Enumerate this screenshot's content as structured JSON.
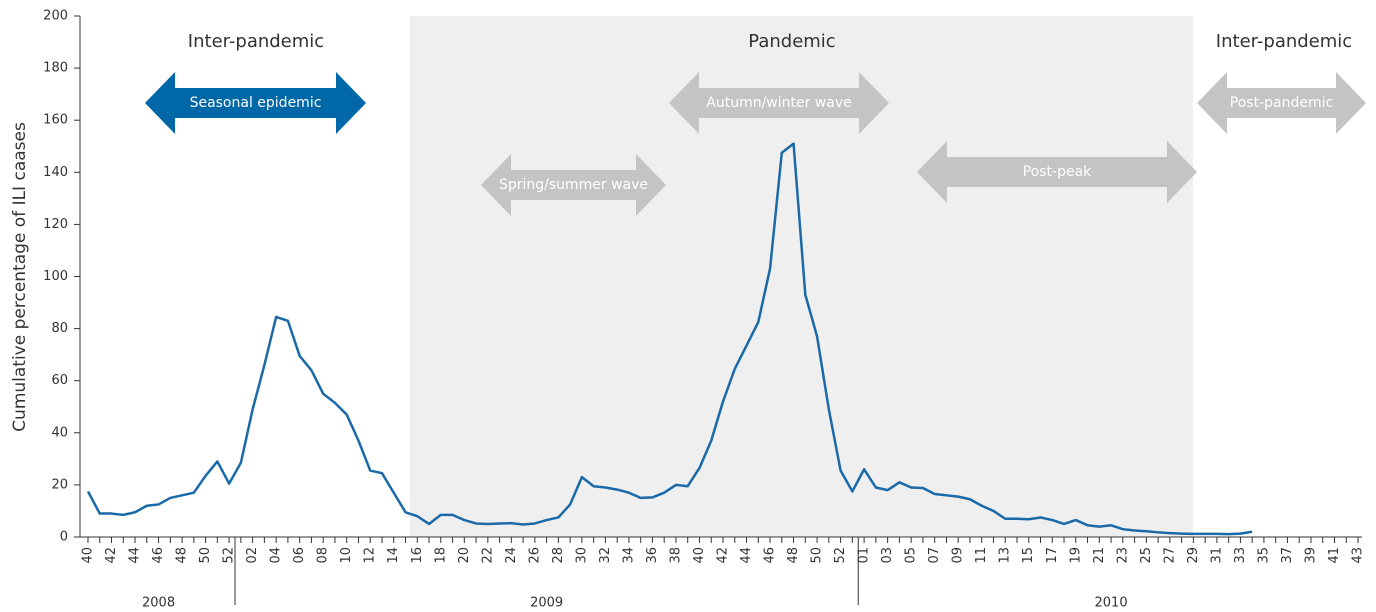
{
  "chart_data": {
    "type": "line",
    "y_label": "Cumulative percentage of ILI caases",
    "categories": [
      "40",
      null,
      "42",
      null,
      "44",
      null,
      "46",
      null,
      "48",
      null,
      "50",
      null,
      "52",
      null,
      "02",
      null,
      "04",
      null,
      "06",
      null,
      "08",
      null,
      "10",
      null,
      "12",
      null,
      "14",
      null,
      "16",
      null,
      "18",
      null,
      "20",
      null,
      "22",
      null,
      "24",
      null,
      "26",
      null,
      "28",
      null,
      "30",
      null,
      "32",
      null,
      "34",
      null,
      "36",
      null,
      "38",
      null,
      "40",
      null,
      "42",
      null,
      "44",
      null,
      "46",
      null,
      "48",
      null,
      "50",
      null,
      "52",
      null,
      "01",
      null,
      "03",
      null,
      "05",
      null,
      "07",
      null,
      "09",
      null,
      "11",
      null,
      "13",
      null,
      "15",
      null,
      "17",
      null,
      "19",
      null,
      "21",
      null,
      "23",
      null,
      "25",
      null,
      "27",
      null,
      "29",
      null,
      "31",
      null,
      "33",
      null,
      "35",
      null,
      "37",
      null,
      "39",
      null,
      "41",
      null,
      "43"
    ],
    "years": [
      "2008",
      "2009",
      "2010"
    ],
    "series": [
      {
        "name": "ILI cases",
        "color": "#1a69a8",
        "values": [
          17.5,
          9,
          9,
          8.5,
          9.5,
          12,
          12.5,
          15,
          16,
          17,
          23.5,
          29,
          20.5,
          28.5,
          49,
          66,
          84.5,
          83,
          69.5,
          64,
          55,
          51.5,
          47,
          37,
          25.5,
          24.5,
          17,
          9.5,
          8,
          5,
          8.5,
          8.5,
          6.5,
          5.2,
          5,
          5.2,
          5.3,
          4.8,
          5.2,
          6.5,
          7.5,
          12.5,
          23,
          19.5,
          19,
          18.2,
          17,
          15,
          15.2,
          17,
          20,
          19.5,
          26.5,
          37,
          52,
          64.5,
          73.5,
          82.5,
          103,
          147.5,
          151,
          93,
          77,
          49,
          25.5,
          17.5,
          26,
          19,
          18,
          21,
          19,
          18.8,
          16.5,
          16,
          15.5,
          14.5,
          12,
          10,
          7,
          7,
          6.8,
          7.5,
          6.5,
          5,
          6.5,
          4.5,
          4,
          4.5,
          3,
          2.5,
          2.2,
          1.8,
          1.5,
          1.3,
          1.2,
          1.2,
          1.2,
          1.1,
          1.3,
          2,
          null,
          null,
          null,
          null,
          null,
          null,
          null,
          null,
          null
        ]
      }
    ],
    "ylim": [
      0,
      200
    ],
    "yticks": [
      0,
      20,
      40,
      60,
      80,
      100,
      120,
      140,
      160,
      180,
      200
    ],
    "periods": [
      "Inter-pandemic",
      "Pandemic",
      "Inter-pandemic"
    ],
    "arrows": [
      "Seasonal epidemic",
      "Spring/summer wave",
      "Autumn/winter wave",
      "Post-peak",
      "Post-pandemic"
    ]
  }
}
